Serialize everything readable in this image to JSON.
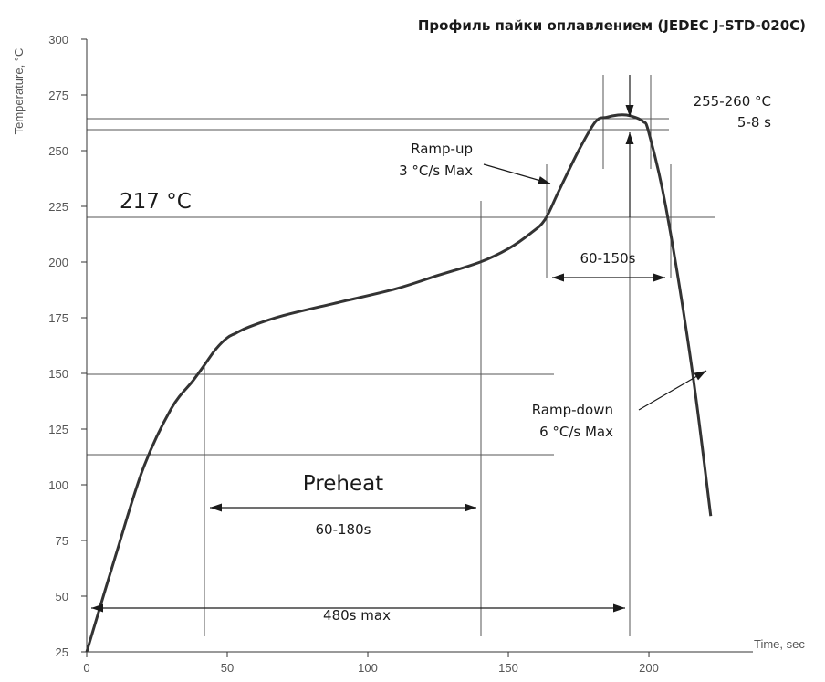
{
  "chart_data": {
    "type": "line",
    "title": "Профиль пайки оплавлением (JEDEC J-STD-020C)",
    "xlabel": "Time, sec",
    "ylabel": "Temperature, °C",
    "xlim": [
      0,
      237
    ],
    "ylim": [
      25,
      300
    ],
    "x_ticks": [
      0,
      50,
      100,
      150,
      200
    ],
    "y_ticks": [
      25,
      50,
      75,
      100,
      125,
      150,
      175,
      200,
      225,
      250,
      275,
      300
    ],
    "grid": false,
    "legend": "none",
    "series": [
      {
        "color": "#333333",
        "x": [
          0,
          10,
          20,
          30,
          38,
          42,
          46,
          50,
          53,
          58,
          70,
          90,
          110,
          125,
          140,
          150,
          158,
          163,
          168,
          175,
          181,
          185,
          189,
          192,
          195,
          198,
          200,
          206,
          215,
          222
        ],
        "y": [
          25,
          67,
          107,
          134,
          147,
          154,
          161,
          166,
          168,
          171,
          176,
          182,
          188,
          194,
          200,
          206,
          213,
          219,
          232,
          250,
          263,
          265,
          266,
          266,
          265,
          263,
          258,
          225,
          155,
          86
        ]
      }
    ],
    "annotations": {
      "liquidus": "217 °C",
      "peak_temp": "255-260 °C",
      "peak_time": "5-8 s",
      "ramp_up_1": "Ramp-up",
      "ramp_up_2": "3 °C/s Max",
      "ramp_down_1": "Ramp-down",
      "ramp_down_2": "6 °C/s Max",
      "preheat": "Preheat",
      "preheat_time": "60-180s",
      "reflow_time": "60-150s",
      "total_time": "480s max"
    }
  }
}
